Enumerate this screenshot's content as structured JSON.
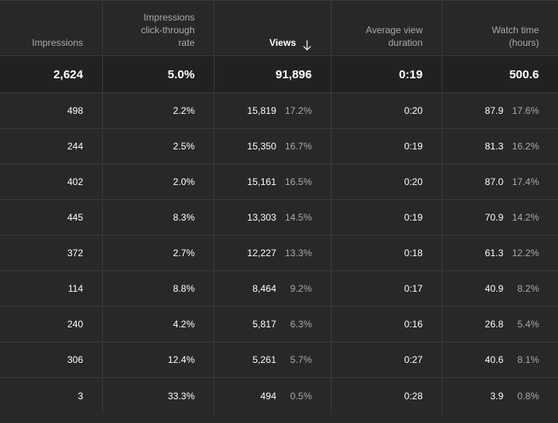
{
  "headers": {
    "impressions": "Impressions",
    "ctr": "Impressions click-through rate",
    "views": "Views",
    "avg_duration": "Average view duration",
    "watch_time": "Watch time (hours)"
  },
  "totals": {
    "impressions": "2,624",
    "ctr": "5.0%",
    "views": "91,896",
    "avg_duration": "0:19",
    "watch_time": "500.6"
  },
  "rows": [
    {
      "impressions": "498",
      "ctr": "2.2%",
      "views": "15,819",
      "views_pct": "17.2%",
      "avg_duration": "0:20",
      "watch_time": "87.9",
      "watch_pct": "17.6%"
    },
    {
      "impressions": "244",
      "ctr": "2.5%",
      "views": "15,350",
      "views_pct": "16.7%",
      "avg_duration": "0:19",
      "watch_time": "81.3",
      "watch_pct": "16.2%"
    },
    {
      "impressions": "402",
      "ctr": "2.0%",
      "views": "15,161",
      "views_pct": "16.5%",
      "avg_duration": "0:20",
      "watch_time": "87.0",
      "watch_pct": "17.4%"
    },
    {
      "impressions": "445",
      "ctr": "8.3%",
      "views": "13,303",
      "views_pct": "14.5%",
      "avg_duration": "0:19",
      "watch_time": "70.9",
      "watch_pct": "14.2%"
    },
    {
      "impressions": "372",
      "ctr": "2.7%",
      "views": "12,227",
      "views_pct": "13.3%",
      "avg_duration": "0:18",
      "watch_time": "61.3",
      "watch_pct": "12.2%"
    },
    {
      "impressions": "114",
      "ctr": "8.8%",
      "views": "8,464",
      "views_pct": "9.2%",
      "avg_duration": "0:17",
      "watch_time": "40.9",
      "watch_pct": "8.2%"
    },
    {
      "impressions": "240",
      "ctr": "4.2%",
      "views": "5,817",
      "views_pct": "6.3%",
      "avg_duration": "0:16",
      "watch_time": "26.8",
      "watch_pct": "5.4%"
    },
    {
      "impressions": "306",
      "ctr": "12.4%",
      "views": "5,261",
      "views_pct": "5.7%",
      "avg_duration": "0:27",
      "watch_time": "40.6",
      "watch_pct": "8.1%"
    },
    {
      "impressions": "3",
      "ctr": "33.3%",
      "views": "494",
      "views_pct": "0.5%",
      "avg_duration": "0:28",
      "watch_time": "3.9",
      "watch_pct": "0.8%"
    }
  ],
  "icons": {
    "sort": "arrow-down-icon"
  },
  "colors": {
    "background": "#282828",
    "totals_background": "#212121",
    "divider": "#3a3a3a",
    "secondary_text": "#aaaaaa"
  }
}
